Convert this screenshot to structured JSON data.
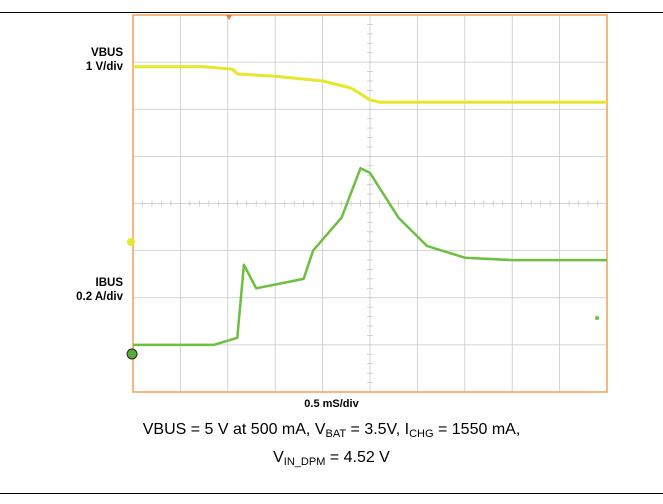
{
  "chart_data": {
    "type": "line",
    "title": "",
    "channels": [
      {
        "label": "VBUS",
        "scale": "1 V/div",
        "color": "#e6e62d"
      },
      {
        "label": "IBUS",
        "scale": "0.2 A/div",
        "color": "#6cbf3f"
      }
    ],
    "x_scale": "0.5 mS/div",
    "x_unit": "ms",
    "divisions": {
      "x": 10,
      "y": 8
    },
    "series": [
      {
        "name": "VBUS",
        "unit": "div",
        "x": [
          -2.5,
          -1.75,
          -1.45,
          -1.4,
          -1.0,
          -0.5,
          -0.2,
          0.0,
          0.1,
          2.5
        ],
        "values": [
          2.9,
          2.9,
          2.85,
          2.75,
          2.7,
          2.6,
          2.45,
          2.2,
          2.15,
          2.15
        ]
      },
      {
        "name": "IBUS",
        "unit": "div",
        "x": [
          -2.5,
          -1.65,
          -1.4,
          -1.33,
          -1.2,
          -0.7,
          -0.6,
          -0.3,
          -0.1,
          0.0,
          0.3,
          0.6,
          1.0,
          1.5,
          2.5
        ],
        "values": [
          -3.0,
          -3.0,
          -2.85,
          -1.3,
          -1.8,
          -1.6,
          -1.0,
          -0.3,
          0.75,
          0.65,
          -0.3,
          -0.9,
          -1.15,
          -1.2,
          -1.2
        ]
      }
    ]
  },
  "caption": {
    "line1_a": "VBUS = 5 V at 500 mA, V",
    "line1_b": "BAT",
    "line1_c": " = 3.5V, I",
    "line1_d": "CHG",
    "line1_e": " = 1550 mA,",
    "line2_a": "V",
    "line2_b": "IN_DPM",
    "line2_c": " = 4.52 V"
  },
  "colors": {
    "frame": "#f0a05a",
    "grid": "#c8c8c8",
    "marker_ch1": "#e6e62d",
    "marker_ch2": "#5aaa3c"
  }
}
